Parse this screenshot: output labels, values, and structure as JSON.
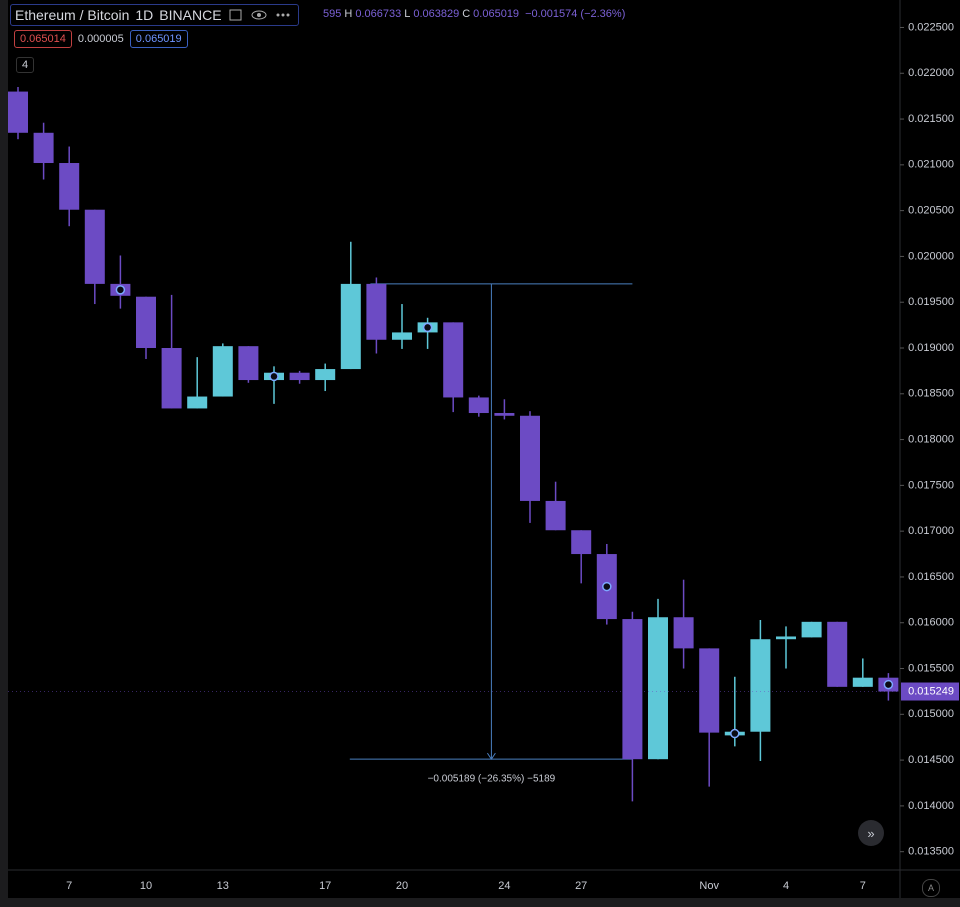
{
  "header": {
    "symbol": "Ethereum / Bitcoin",
    "interval": "1D",
    "exchange": "BINANCE",
    "ohlc": [
      {
        "key": "",
        "value": "595"
      },
      {
        "key": "H",
        "value": "0.066733"
      },
      {
        "key": "L",
        "value": "0.063829"
      },
      {
        "key": "C",
        "value": "0.065019"
      },
      {
        "key": "",
        "value": "−0.001574 (−2.36%)"
      }
    ],
    "bid": "0.065014",
    "spread": "0.000005",
    "ask": "0.065019",
    "indicators": "4",
    "scroll_button": "»",
    "auto_button": "A"
  },
  "chart_data": {
    "type": "candlestick",
    "categories": [
      null,
      null,
      "7",
      null,
      null,
      "10",
      null,
      null,
      "13",
      null,
      null,
      null,
      "17",
      null,
      null,
      "20",
      null,
      null,
      null,
      "24",
      null,
      null,
      "27",
      null,
      null,
      null,
      null,
      "Nov",
      null,
      null,
      "4",
      null,
      null,
      "7",
      null
    ],
    "open": [
      0.0218,
      0.02135,
      0.02102,
      0.02051,
      0.0197,
      0.01956,
      0.019,
      0.01834,
      0.01847,
      0.01902,
      0.01865,
      0.01873,
      0.01865,
      0.01877,
      0.0197,
      0.01909,
      0.01917,
      0.01928,
      0.01846,
      0.01829,
      0.01826,
      0.01733,
      0.01701,
      0.01675,
      0.01604,
      0.01451,
      0.01606,
      0.01572,
      0.01477,
      0.01481,
      0.01582,
      0.01584,
      0.01601,
      0.0153,
      0.0154
    ],
    "high": [
      0.02185,
      0.02146,
      0.0212,
      0.02051,
      0.02001,
      0.01956,
      0.01958,
      0.0189,
      0.01905,
      0.01902,
      0.0188,
      0.01875,
      0.01883,
      0.02016,
      0.01977,
      0.01948,
      0.01933,
      0.01928,
      0.01848,
      0.01844,
      0.01831,
      0.01754,
      0.01701,
      0.01686,
      0.01612,
      0.01626,
      0.01647,
      0.01572,
      0.01541,
      0.01603,
      0.01596,
      0.01601,
      0.01601,
      0.01561,
      0.01545
    ],
    "low": [
      0.02128,
      0.02084,
      0.02033,
      0.01948,
      0.01943,
      0.01888,
      0.01834,
      0.01834,
      0.01847,
      0.01862,
      0.01839,
      0.01861,
      0.01853,
      0.01877,
      0.01894,
      0.01899,
      0.01899,
      0.0183,
      0.01825,
      0.01822,
      0.01709,
      0.01701,
      0.01643,
      0.01598,
      0.01405,
      0.01451,
      0.0155,
      0.01421,
      0.01465,
      0.01449,
      0.0155,
      0.01584,
      0.0153,
      0.0153,
      0.01515
    ],
    "close": [
      0.02135,
      0.02102,
      0.02051,
      0.0197,
      0.01957,
      0.019,
      0.01834,
      0.01847,
      0.01902,
      0.01865,
      0.01873,
      0.01865,
      0.01877,
      0.0197,
      0.01909,
      0.01917,
      0.01928,
      0.01846,
      0.01829,
      0.01826,
      0.01733,
      0.01701,
      0.01675,
      0.01604,
      0.01451,
      0.01606,
      0.01572,
      0.0148,
      0.01481,
      0.01582,
      0.01585,
      0.01601,
      0.0153,
      0.0154,
      0.015249
    ],
    "up_color": "#5ec8d8",
    "down_color": "#6c4bc4",
    "ylim": [
      0.0133,
      0.0228
    ],
    "yticks": [
      {
        "value": 0.0135,
        "label": "0.013500"
      },
      {
        "value": 0.014,
        "label": "0.014000"
      },
      {
        "value": 0.0145,
        "label": "0.014500"
      },
      {
        "value": 0.015,
        "label": "0.015000"
      },
      {
        "value": 0.0155,
        "label": "0.015500"
      },
      {
        "value": 0.016,
        "label": "0.016000"
      },
      {
        "value": 0.0165,
        "label": "0.016500"
      },
      {
        "value": 0.017,
        "label": "0.017000"
      },
      {
        "value": 0.0175,
        "label": "0.017500"
      },
      {
        "value": 0.018,
        "label": "0.018000"
      },
      {
        "value": 0.0185,
        "label": "0.018500"
      },
      {
        "value": 0.019,
        "label": "0.019000"
      },
      {
        "value": 0.0195,
        "label": "0.019500"
      },
      {
        "value": 0.02,
        "label": "0.020000"
      },
      {
        "value": 0.0205,
        "label": "0.020500"
      },
      {
        "value": 0.021,
        "label": "0.021000"
      },
      {
        "value": 0.0215,
        "label": "0.021500"
      },
      {
        "value": 0.022,
        "label": "0.022000"
      },
      {
        "value": 0.0225,
        "label": "0.022500"
      }
    ],
    "last_price": {
      "value": 0.015249,
      "label": "0.015249"
    },
    "measure": {
      "from": 0.0197,
      "to": 0.014511,
      "label": "−0.005189 (−26.35%) −5189",
      "color": "#4a7fc0"
    }
  }
}
